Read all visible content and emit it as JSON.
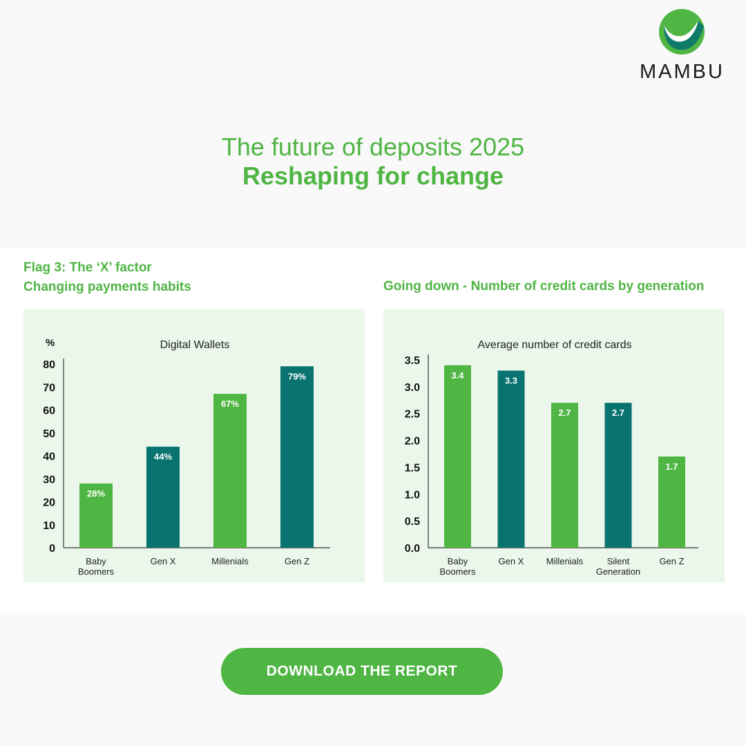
{
  "brand": {
    "name": "MAMBU",
    "logo_icon": "mambu-logo-icon",
    "colors": {
      "green": "#4fb543",
      "teal": "#08736f",
      "panel": "#ebf7ea"
    }
  },
  "hero": {
    "title": "The future of deposits 2025",
    "subtitle": "Reshaping for change"
  },
  "left_section": {
    "title_line1": "Flag 3: The ‘X’ factor",
    "title_line2": "Changing payments habits"
  },
  "right_section": {
    "title": "Going down - Number of credit cards by generation"
  },
  "chart_data": [
    {
      "type": "bar",
      "title": "Digital Wallets",
      "ylabel": "%",
      "xlabel": "",
      "categories": [
        "Baby Boomers",
        "Gen X",
        "Millenials",
        "Gen Z"
      ],
      "category_lines": [
        [
          "Baby",
          "Boomers"
        ],
        [
          "Gen X"
        ],
        [
          "Millenials"
        ],
        [
          "Gen Z"
        ]
      ],
      "values": [
        28,
        44,
        67,
        79
      ],
      "data_labels": [
        "28%",
        "44%",
        "67%",
        "79%"
      ],
      "bar_colors": [
        "#4fb543",
        "#08736f",
        "#4fb543",
        "#08736f"
      ],
      "ylim": [
        0,
        80
      ],
      "yticks": [
        0,
        10,
        20,
        30,
        40,
        50,
        60,
        70,
        80
      ],
      "ytick_labels": [
        "0",
        "10",
        "20",
        "30",
        "40",
        "50",
        "60",
        "70",
        "80"
      ],
      "grid": false,
      "legend": "none"
    },
    {
      "type": "bar",
      "title": "Average number of credit cards",
      "ylabel": "",
      "xlabel": "",
      "categories": [
        "Baby Boomers",
        "Gen X",
        "Millenials",
        "Silent Generation",
        "Gen Z"
      ],
      "category_lines": [
        [
          "Baby",
          "Boomers"
        ],
        [
          "Gen X"
        ],
        [
          "Millenials"
        ],
        [
          "Silent",
          "Generation"
        ],
        [
          "Gen Z"
        ]
      ],
      "values": [
        3.4,
        3.3,
        2.7,
        2.7,
        1.7
      ],
      "data_labels": [
        "3.4",
        "3.3",
        "2.7",
        "2.7",
        "1.7"
      ],
      "bar_colors": [
        "#4fb543",
        "#08736f",
        "#4fb543",
        "#08736f",
        "#4fb543"
      ],
      "ylim": [
        0,
        3.5
      ],
      "yticks": [
        0,
        0.5,
        1,
        1.5,
        2,
        2.5,
        3,
        3.5
      ],
      "ytick_labels": [
        "0.0",
        "0.5",
        "1.0",
        "1.5",
        "2.0",
        "2.5",
        "3.0",
        "3.5"
      ],
      "grid": false,
      "legend": "none"
    }
  ],
  "cta": {
    "label": "DOWNLOAD THE REPORT"
  }
}
